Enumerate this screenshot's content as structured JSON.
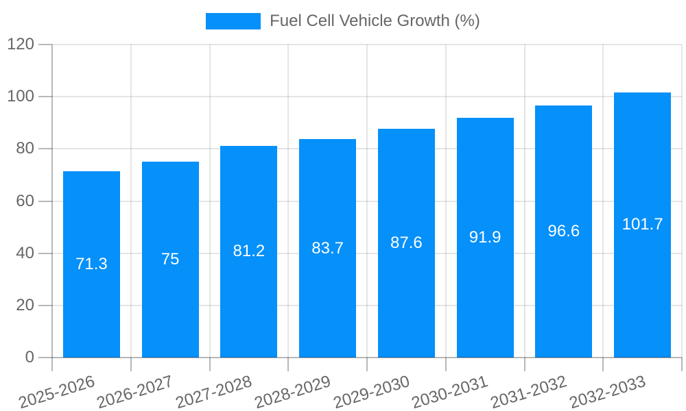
{
  "legend": {
    "label": "Fuel Cell Vehicle Growth (%)"
  },
  "colors": {
    "bar": "#0590fa",
    "grid": "rgba(0,0,0,0.10)",
    "axis": "rgba(0,0,0,0.28)",
    "tick_mark": "rgba(0,0,0,0.28)",
    "tick_text": "#666666",
    "value_label": "#ffffff",
    "background": "#ffffff"
  },
  "chart_data": {
    "type": "bar",
    "title": "Fuel Cell Vehicle Growth (%)",
    "categories": [
      "2025-2026",
      "2026-2027",
      "2027-2028",
      "2028-2029",
      "2029-2030",
      "2030-2031",
      "2031-2032",
      "2032-2033"
    ],
    "series": [
      {
        "name": "Fuel Cell Vehicle Growth (%)",
        "values": [
          71.3,
          75,
          81.2,
          83.7,
          87.6,
          91.9,
          96.6,
          101.7
        ]
      }
    ],
    "value_labels": [
      71.3,
      75,
      81.2,
      83.7,
      87.6,
      91.9,
      96.6,
      101.7
    ],
    "value_label_position": "inside-center",
    "xlabel": "",
    "ylabel": "",
    "ylim": [
      0,
      120
    ],
    "yticks": [
      0,
      20,
      40,
      60,
      80,
      100,
      120
    ],
    "grid": "on",
    "legend_position": "top-center",
    "x_label_rotation_deg": -17
  }
}
